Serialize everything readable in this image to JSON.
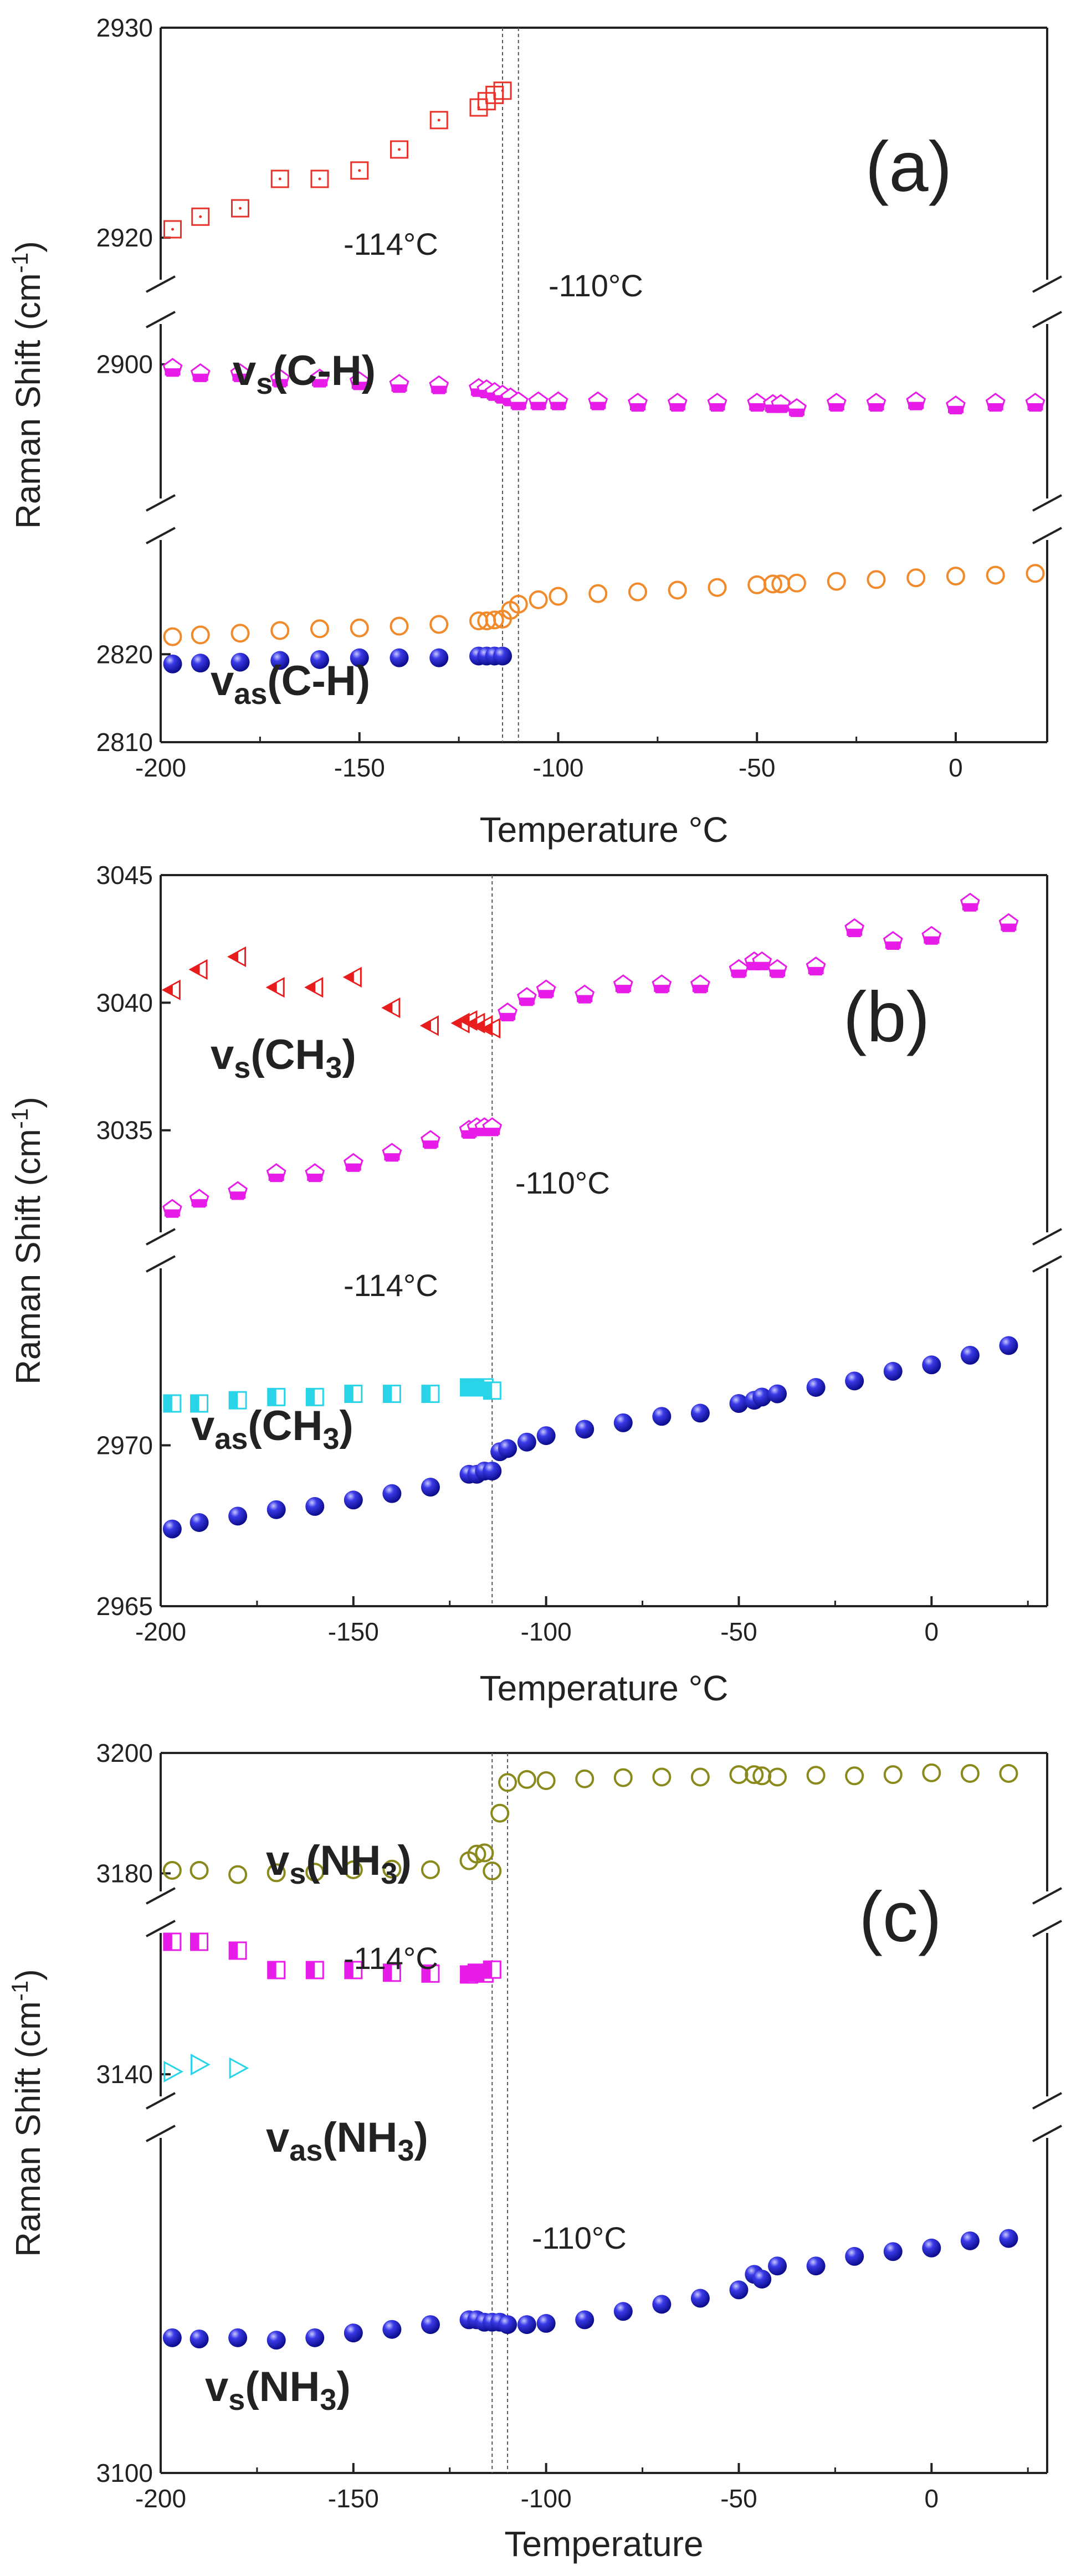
{
  "figure": {
    "ylabel_text": "Raman Shift (cm",
    "ylabel_sup": "-1",
    "ylabel_tail": ")"
  },
  "chart_data": [
    {
      "type": "scatter",
      "panel": "(a)",
      "xlabel": "Temperature °C",
      "xlim": [
        -200,
        23
      ],
      "xticks": [
        -200,
        -150,
        -100,
        -50,
        0
      ],
      "y_segments": [
        {
          "range": [
            2810,
            2833
          ],
          "ticks": [
            2810,
            2820
          ]
        },
        {
          "range": [
            2890,
            2903
          ],
          "ticks": [
            2900
          ]
        },
        {
          "range": [
            2918,
            2930
          ],
          "ticks": [
            2920,
            2930
          ]
        }
      ],
      "annotations": [
        {
          "text": "-114°C"
        },
        {
          "text": "-110°C"
        }
      ],
      "species_labels": [
        {
          "base": "v",
          "sub": "s",
          "tail": "(C-H)"
        },
        {
          "base": "v",
          "sub": "as",
          "tail": "(C-H)"
        }
      ],
      "vlines": [
        -114,
        -110
      ],
      "series": [
        {
          "marker": "square-dot",
          "color": "#e8322a",
          "segment": 2,
          "x": [
            -197,
            -190,
            -180,
            -170,
            -160,
            -150,
            -140,
            -130,
            -120,
            -118,
            -116,
            -114
          ],
          "y": [
            2920.4,
            2921.0,
            2921.4,
            2922.8,
            2922.8,
            2923.2,
            2924.2,
            2925.6,
            2926.2,
            2926.5,
            2926.8,
            2927.0
          ]
        },
        {
          "marker": "pentagon-half",
          "color": "#e81ce8",
          "segment": 1,
          "x": [
            -197,
            -190,
            -180,
            -170,
            -160,
            -150,
            -140,
            -130,
            -120,
            -118,
            -116,
            -114,
            -112,
            -110,
            -105,
            -100,
            -90,
            -80,
            -70,
            -60,
            -50,
            -46,
            -44,
            -40,
            -30,
            -20,
            -10,
            0,
            10,
            20
          ],
          "y": [
            2899.7,
            2899.3,
            2899.3,
            2898.9,
            2898.9,
            2898.7,
            2898.5,
            2898.4,
            2898.2,
            2898.1,
            2897.9,
            2897.7,
            2897.5,
            2897.2,
            2897.2,
            2897.2,
            2897.2,
            2897.1,
            2897.1,
            2897.1,
            2897.1,
            2897.0,
            2897.0,
            2896.7,
            2897.1,
            2897.1,
            2897.2,
            2896.9,
            2897.1,
            2897.1
          ]
        },
        {
          "marker": "circle-open",
          "color": "#f08a2a",
          "segment": 0,
          "x": [
            -197,
            -190,
            -180,
            -170,
            -160,
            -150,
            -140,
            -130,
            -120,
            -118,
            -116,
            -114,
            -112,
            -110,
            -105,
            -100,
            -90,
            -80,
            -70,
            -60,
            -50,
            -46,
            -44,
            -40,
            -30,
            -20,
            -10,
            0,
            10,
            20
          ],
          "y": [
            2822.0,
            2822.2,
            2822.4,
            2822.7,
            2822.9,
            2823.0,
            2823.2,
            2823.4,
            2823.8,
            2823.8,
            2823.9,
            2824.0,
            2825.0,
            2825.7,
            2826.2,
            2826.6,
            2826.9,
            2827.1,
            2827.3,
            2827.6,
            2827.9,
            2828.0,
            2828.0,
            2828.1,
            2828.3,
            2828.5,
            2828.7,
            2828.9,
            2829.0,
            2829.2
          ]
        },
        {
          "marker": "sphere",
          "color": "#1f1fcf",
          "segment": 0,
          "x": [
            -197,
            -190,
            -180,
            -170,
            -160,
            -150,
            -140,
            -130,
            -120,
            -118,
            -116,
            -114
          ],
          "y": [
            2818.9,
            2819.0,
            2819.1,
            2819.3,
            2819.4,
            2819.6,
            2819.6,
            2819.6,
            2819.8,
            2819.8,
            2819.8,
            2819.8
          ]
        }
      ]
    },
    {
      "type": "scatter",
      "panel": "(b)",
      "xlabel": "Temperature °C",
      "xlim": [
        -200,
        30
      ],
      "xticks": [
        -200,
        -150,
        -100,
        -50,
        0
      ],
      "y_segments": [
        {
          "range": [
            2965,
            2975.5
          ],
          "ticks": [
            2965,
            2970
          ]
        },
        {
          "range": [
            3031,
            3045
          ],
          "ticks": [
            3035,
            3040,
            3045
          ]
        }
      ],
      "annotations": [
        {
          "text": "-114°C"
        },
        {
          "text": "-110°C"
        }
      ],
      "species_labels": [
        {
          "base": "v",
          "sub": "s",
          "tail": "(CH",
          "sub2": "3",
          "tail2": ")"
        },
        {
          "base": "v",
          "sub": "as",
          "tail": "(CH",
          "sub2": "3",
          "tail2": ")"
        }
      ],
      "vlines": [
        -114
      ],
      "series": [
        {
          "marker": "tri-left",
          "color": "#e81c1c",
          "segment": 1,
          "x": [
            -197,
            -190,
            -180,
            -170,
            -160,
            -150,
            -140,
            -130,
            -122,
            -120,
            -118,
            -116,
            -114
          ],
          "y": [
            3040.5,
            3041.3,
            3041.8,
            3040.6,
            3040.6,
            3041.0,
            3039.8,
            3039.1,
            3039.2,
            3039.3,
            3039.2,
            3039.1,
            3039.0
          ]
        },
        {
          "marker": "pentagon-half",
          "color": "#e81ce8",
          "segment": 1,
          "x": [
            -197,
            -190,
            -180,
            -170,
            -160,
            -150,
            -140,
            -130,
            -120,
            -118,
            -116,
            -114,
            -110,
            -105,
            -100,
            -90,
            -80,
            -70,
            -60,
            -50,
            -46,
            -44,
            -40,
            -30,
            -20,
            -10,
            0,
            10,
            20
          ],
          "y": [
            3031.9,
            3032.3,
            3032.6,
            3033.3,
            3033.3,
            3033.7,
            3034.1,
            3034.6,
            3035.0,
            3035.1,
            3035.1,
            3035.1,
            3039.6,
            3040.2,
            3040.5,
            3040.3,
            3040.7,
            3040.7,
            3040.7,
            3041.3,
            3041.6,
            3041.6,
            3041.3,
            3041.4,
            3042.9,
            3042.4,
            3042.6,
            3043.9,
            3043.1
          ]
        },
        {
          "marker": "square-half",
          "color": "#2ad4e8",
          "segment": 0,
          "x": [
            -197,
            -190,
            -180,
            -170,
            -160,
            -150,
            -140,
            -130,
            -120,
            -118,
            -116,
            -114
          ],
          "y": [
            2971.3,
            2971.3,
            2971.4,
            2971.5,
            2971.5,
            2971.6,
            2971.6,
            2971.6,
            2971.8,
            2971.8,
            2971.8,
            2971.7
          ]
        },
        {
          "marker": "sphere",
          "color": "#1f1fcf",
          "segment": 0,
          "x": [
            -197,
            -190,
            -180,
            -170,
            -160,
            -150,
            -140,
            -130,
            -120,
            -118,
            -116,
            -114,
            -112,
            -110,
            -105,
            -100,
            -90,
            -80,
            -70,
            -60,
            -50,
            -46,
            -44,
            -40,
            -30,
            -20,
            -10,
            0,
            10,
            20
          ],
          "y": [
            2967.4,
            2967.6,
            2967.8,
            2968.0,
            2968.1,
            2968.3,
            2968.5,
            2968.7,
            2969.1,
            2969.1,
            2969.2,
            2969.2,
            2969.8,
            2969.9,
            2970.1,
            2970.3,
            2970.5,
            2970.7,
            2970.9,
            2971.0,
            2971.3,
            2971.4,
            2971.5,
            2971.6,
            2971.8,
            2972.0,
            2972.3,
            2972.5,
            2972.8,
            2973.1
          ]
        }
      ]
    },
    {
      "type": "scatter",
      "panel": "(c)",
      "xlabel": "Temperature",
      "xlim": [
        -200,
        30
      ],
      "xticks": [
        -200,
        -150,
        -100,
        -50,
        0
      ],
      "y_segments": [
        {
          "range": [
            3100,
            3128
          ],
          "ticks": [
            3100
          ]
        },
        {
          "range": [
            3135,
            3172
          ],
          "ticks": [
            3140
          ]
        },
        {
          "range": [
            3177,
            3200
          ],
          "ticks": [
            3180,
            3200
          ]
        }
      ],
      "annotations": [
        {
          "text": "-114°C"
        },
        {
          "text": "-110°C"
        }
      ],
      "species_labels": [
        {
          "base": "v",
          "sub": "s",
          "tail": "(NH",
          "sub2": "3",
          "tail2": ")"
        },
        {
          "base": "v",
          "sub": "as",
          "tail": "(NH",
          "sub2": "3",
          "tail2": ")"
        },
        {
          "base": "v",
          "sub": "s",
          "tail": "(NH",
          "sub2": "3",
          "tail2": ")"
        }
      ],
      "vlines": [
        -114,
        -110
      ],
      "series": [
        {
          "marker": "circle-open",
          "color": "#8a8a1c",
          "segment": 2,
          "x": [
            -197,
            -190,
            -180,
            -170,
            -160,
            -150,
            -140,
            -130,
            -120,
            -118,
            -116,
            -114,
            -112,
            -110,
            -105,
            -100,
            -90,
            -80,
            -70,
            -60,
            -50,
            -46,
            -44,
            -40,
            -30,
            -20,
            -10,
            0,
            10,
            20
          ],
          "y": [
            3180.5,
            3180.5,
            3179.8,
            3180.1,
            3180.2,
            3180.6,
            3180.7,
            3180.6,
            3182.1,
            3183.2,
            3183.4,
            3180.4,
            3190.0,
            3195.1,
            3195.6,
            3195.4,
            3195.7,
            3195.9,
            3196.0,
            3196.0,
            3196.4,
            3196.4,
            3196.2,
            3196.0,
            3196.3,
            3196.2,
            3196.4,
            3196.7,
            3196.6,
            3196.6
          ]
        },
        {
          "marker": "square-half",
          "color": "#e81ce8",
          "segment": 1,
          "x": [
            -197,
            -190,
            -180,
            -170,
            -160,
            -150,
            -140,
            -130,
            -120,
            -118,
            -116,
            -114
          ],
          "y": [
            3170.0,
            3170.0,
            3168.0,
            3163.6,
            3163.6,
            3163.6,
            3163.0,
            3162.8,
            3162.6,
            3163.0,
            3162.8,
            3163.7
          ]
        },
        {
          "marker": "tri-right",
          "color": "#2ad4e8",
          "segment": 1,
          "x": [
            -197,
            -190,
            -180
          ],
          "y": [
            3140.6,
            3142.2,
            3141.4
          ]
        },
        {
          "marker": "sphere",
          "color": "#1f1fcf",
          "segment": 0,
          "x": [
            -197,
            -190,
            -180,
            -170,
            -160,
            -150,
            -140,
            -130,
            -120,
            -118,
            -116,
            -114,
            -112,
            -110,
            -105,
            -100,
            -90,
            -80,
            -70,
            -60,
            -50,
            -46,
            -44,
            -40,
            -30,
            -20,
            -10,
            0,
            10,
            20
          ],
          "y": [
            3111.3,
            3111.2,
            3111.3,
            3111.1,
            3111.3,
            3111.7,
            3112.0,
            3112.4,
            3112.8,
            3112.8,
            3112.6,
            3112.6,
            3112.6,
            3112.4,
            3112.4,
            3112.5,
            3112.8,
            3113.5,
            3114.1,
            3114.6,
            3115.3,
            3116.6,
            3116.2,
            3117.3,
            3117.3,
            3118.1,
            3118.5,
            3118.8,
            3119.4,
            3119.6
          ]
        }
      ]
    }
  ]
}
